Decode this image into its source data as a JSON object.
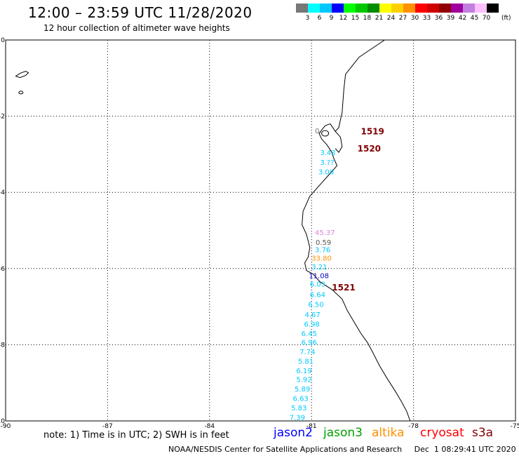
{
  "header": {
    "title": "12:00 – 23:59 UTC 11/28/2020",
    "subtitle": "12 hour collection of altimeter wave heights"
  },
  "legend": {
    "colors": [
      "#777777",
      "#00ffff",
      "#00c8ff",
      "#0000ff",
      "#00ff00",
      "#00c800",
      "#008c00",
      "#ffff00",
      "#ffd000",
      "#ff9000",
      "#ff0000",
      "#d00000",
      "#900000",
      "#a000a0",
      "#c080e0",
      "#ffc0ff",
      "#000000"
    ],
    "labels": [
      "3",
      "6",
      "9",
      "12",
      "15",
      "18",
      "21",
      "24",
      "27",
      "30",
      "33",
      "36",
      "39",
      "42",
      "45",
      "70"
    ],
    "unit": "(ft)"
  },
  "axes": {
    "x_ticks": [
      "-90",
      "-87",
      "-84",
      "-81",
      "-78",
      "-75"
    ],
    "y_ticks": [
      "0",
      "-2",
      "-4",
      "-6",
      "-8",
      "-10"
    ]
  },
  "track_labels": [
    {
      "text": "1519",
      "color": "#800000"
    },
    {
      "text": "1520",
      "color": "#800000"
    },
    {
      "text": "1521",
      "color": "#800000"
    }
  ],
  "observations": [
    {
      "text": "0.",
      "lon": -80.9,
      "lat": -2.38,
      "color": "#777777"
    },
    {
      "text": "3.43",
      "lon": -80.75,
      "lat": -2.95,
      "color": "#00c8ff"
    },
    {
      "text": "3.??",
      "lon": -80.75,
      "lat": -3.2,
      "color": "#00c8ff"
    },
    {
      "text": "3.00",
      "lon": -80.8,
      "lat": -3.45,
      "color": "#00c8ff"
    },
    {
      "text": "45.37",
      "lon": -80.9,
      "lat": -5.05,
      "color": "#e080e0"
    },
    {
      "text": "0.59",
      "lon": -80.88,
      "lat": -5.3,
      "color": "#555555"
    },
    {
      "text": "3.76",
      "lon": -80.9,
      "lat": -5.5,
      "color": "#00c8ff"
    },
    {
      "text": "33.80",
      "lon": -81.0,
      "lat": -5.72,
      "color": "#ff9000"
    },
    {
      "text": "3.21",
      "lon": -81.0,
      "lat": -5.95,
      "color": "#00c8ff"
    },
    {
      "text": "11.08",
      "lon": -81.08,
      "lat": -6.18,
      "color": "#0000c0"
    },
    {
      "text": "6.03",
      "lon": -81.05,
      "lat": -6.4,
      "color": "#00c8ff"
    },
    {
      "text": "6.64",
      "lon": -81.05,
      "lat": -6.68,
      "color": "#00c8ff"
    },
    {
      "text": "6.50",
      "lon": -81.1,
      "lat": -6.93,
      "color": "#00c8ff"
    },
    {
      "text": "4.67",
      "lon": -81.2,
      "lat": -7.2,
      "color": "#00c8ff"
    },
    {
      "text": "6.98",
      "lon": -81.22,
      "lat": -7.45,
      "color": "#00c8ff"
    },
    {
      "text": "6.45",
      "lon": -81.3,
      "lat": -7.7,
      "color": "#00c8ff"
    },
    {
      "text": "6.96",
      "lon": -81.3,
      "lat": -7.93,
      "color": "#00c8ff"
    },
    {
      "text": "7.74",
      "lon": -81.35,
      "lat": -8.18,
      "color": "#00c8ff"
    },
    {
      "text": "5.81",
      "lon": -81.4,
      "lat": -8.43,
      "color": "#00c8ff"
    },
    {
      "text": "6.19",
      "lon": -81.45,
      "lat": -8.67,
      "color": "#00c8ff"
    },
    {
      "text": "5.92",
      "lon": -81.45,
      "lat": -8.9,
      "color": "#00c8ff"
    },
    {
      "text": "5.89",
      "lon": -81.5,
      "lat": -9.15,
      "color": "#00c8ff"
    },
    {
      "text": "6.63",
      "lon": -81.55,
      "lat": -9.4,
      "color": "#00c8ff"
    },
    {
      "text": "5.83",
      "lon": -81.6,
      "lat": -9.65,
      "color": "#00c8ff"
    },
    {
      "text": "7.39",
      "lon": -81.65,
      "lat": -9.9,
      "color": "#00c8ff"
    }
  ],
  "footer": {
    "note": "note: 1) Time is in UTC; 2) SWH is in feet",
    "satellites": [
      {
        "name": "jason2",
        "color": "#0000ff"
      },
      {
        "name": "jason3",
        "color": "#00a000"
      },
      {
        "name": "altika",
        "color": "#ff9000"
      },
      {
        "name": "cryosat",
        "color": "#ff0000"
      },
      {
        "name": "s3a",
        "color": "#800000"
      }
    ],
    "credit": "NOAA/NESDIS Center for Satellite Applications and Research",
    "timestamp": "Dec  1 08:29:41 UTC 2020"
  }
}
